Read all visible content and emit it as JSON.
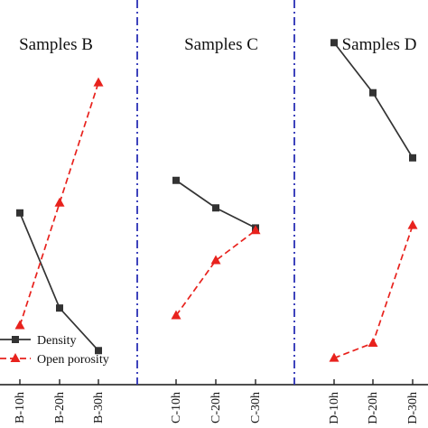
{
  "chart_data": {
    "type": "line",
    "panels": [
      {
        "title": "Samples B",
        "categories": [
          "B-10h",
          "B-20h",
          "B-30h"
        ],
        "series": [
          {
            "name": "Density",
            "values": [
              0.65,
              0.27,
              0.1
            ]
          },
          {
            "name": "Open porosity",
            "values": [
              0.2,
              0.69,
              1.17
            ]
          }
        ]
      },
      {
        "title": "Samples C",
        "categories": [
          "C-10h",
          "C-20h",
          "C-30h"
        ],
        "series": [
          {
            "name": "Density",
            "values": [
              0.78,
              0.67,
              0.59
            ]
          },
          {
            "name": "Open porosity",
            "values": [
              0.24,
              0.46,
              0.58
            ]
          }
        ]
      },
      {
        "title": "Samples D",
        "categories": [
          "D-10h",
          "D-20h",
          "D-30h"
        ],
        "series": [
          {
            "name": "Density",
            "values": [
              1.33,
              1.13,
              0.87
            ]
          },
          {
            "name": "Open porosity",
            "values": [
              0.07,
              0.13,
              0.6
            ]
          }
        ]
      }
    ],
    "ylim": [
      0,
      1.45
    ],
    "grid": false,
    "legend": "bottom-left",
    "colors": {
      "density": "#333333",
      "open_porosity": "#e8221d",
      "separator": "#2a2fb5"
    }
  }
}
